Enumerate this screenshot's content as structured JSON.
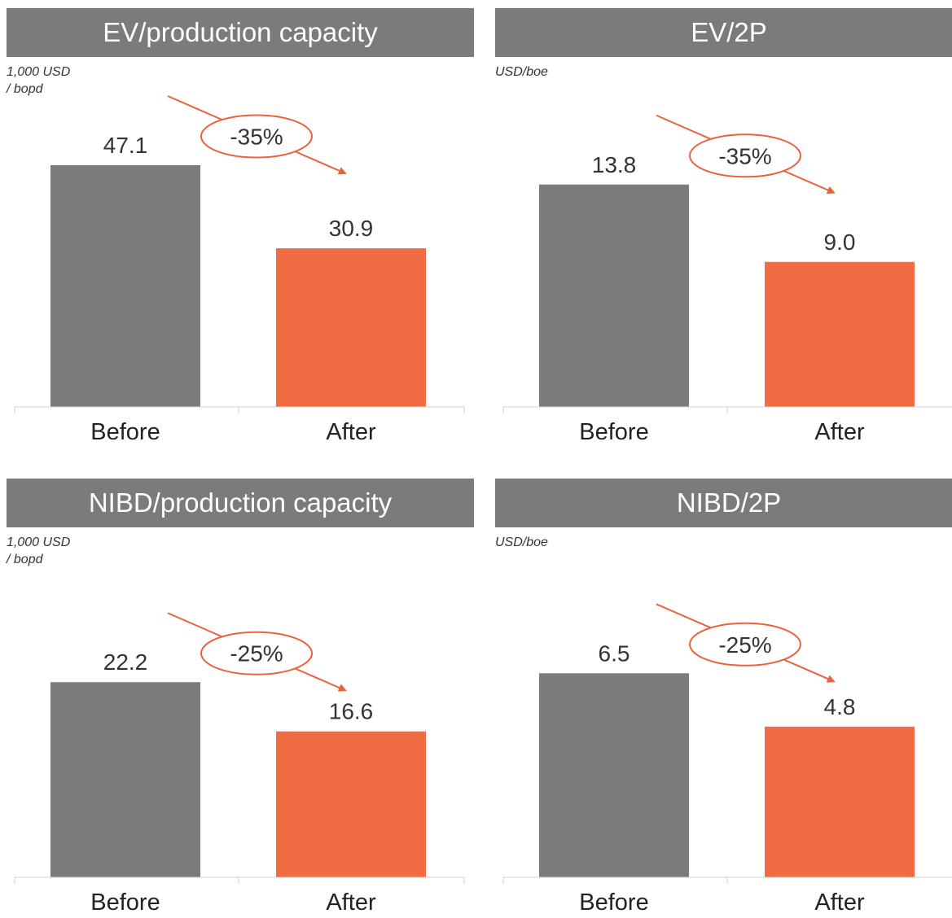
{
  "colors": {
    "header_bg": "#7b7b7b",
    "before_bar": "#7b7b7b",
    "after_bar": "#f26c43",
    "arrow": "#e8623d"
  },
  "chart_data": [
    {
      "type": "bar",
      "title": "EV/production capacity",
      "unit": "1,000 USD\n/ bopd",
      "categories": [
        "Before",
        "After"
      ],
      "values": [
        47.1,
        30.9
      ],
      "value_labels": [
        "47.1",
        "30.9"
      ],
      "change": "-35%",
      "ylim": [
        0,
        47.1
      ]
    },
    {
      "type": "bar",
      "title": "EV/2P",
      "unit": "USD/boe",
      "categories": [
        "Before",
        "After"
      ],
      "values": [
        13.8,
        9.0
      ],
      "value_labels": [
        "13.8",
        "9.0"
      ],
      "change": "-35%",
      "ylim": [
        0,
        15.0
      ]
    },
    {
      "type": "bar",
      "title": "NIBD/production capacity",
      "unit": "1,000 USD\n/ bopd",
      "categories": [
        "Before",
        "After"
      ],
      "values": [
        22.2,
        16.6
      ],
      "value_labels": [
        "22.2",
        "16.6"
      ],
      "change": "-25%",
      "ylim": [
        0,
        27.5
      ]
    },
    {
      "type": "bar",
      "title": "NIBD/2P",
      "unit": "USD/boe",
      "categories": [
        "Before",
        "After"
      ],
      "values": [
        6.5,
        4.8
      ],
      "value_labels": [
        "6.5",
        "4.8"
      ],
      "change": "-25%",
      "ylim": [
        0,
        7.7
      ]
    }
  ]
}
